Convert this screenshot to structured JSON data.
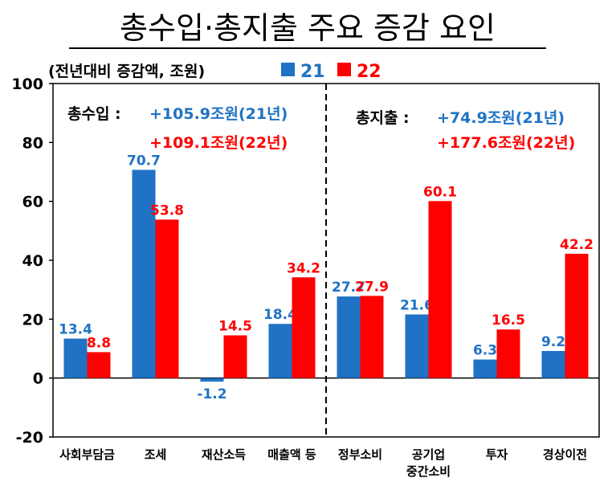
{
  "chart_data": {
    "type": "bar",
    "title": "총수입·총지출 주요 증감 요인",
    "unit_label": "(전년대비 증감액, 조원)",
    "categories": [
      "사회부담금",
      "조세",
      "재산소득",
      "매출액 등",
      "정부소비",
      "공기업|중간소비",
      "투자",
      "경상이전"
    ],
    "series": [
      {
        "name": "21",
        "color": "#1f72c4",
        "values": [
          13.4,
          70.7,
          -1.2,
          18.4,
          27.7,
          21.6,
          6.3,
          9.2
        ]
      },
      {
        "name": "22",
        "color": "#ff0000",
        "values": [
          8.8,
          53.8,
          14.5,
          34.2,
          27.9,
          60.1,
          16.5,
          42.2
        ]
      }
    ],
    "ylim": [
      -20,
      100
    ],
    "yticks": [
      -20,
      0,
      20,
      40,
      60,
      80,
      100
    ],
    "grid": false,
    "legend_position": "top",
    "divider_after_category": 4,
    "annotations": [
      {
        "label": "총수입 :",
        "line1": "+105.9조원(21년)",
        "line2": "+109.1조원(22년)"
      },
      {
        "label": "총지출 :",
        "line1": "+74.9조원(21년)",
        "line2": "+177.6조원(22년)"
      }
    ]
  }
}
